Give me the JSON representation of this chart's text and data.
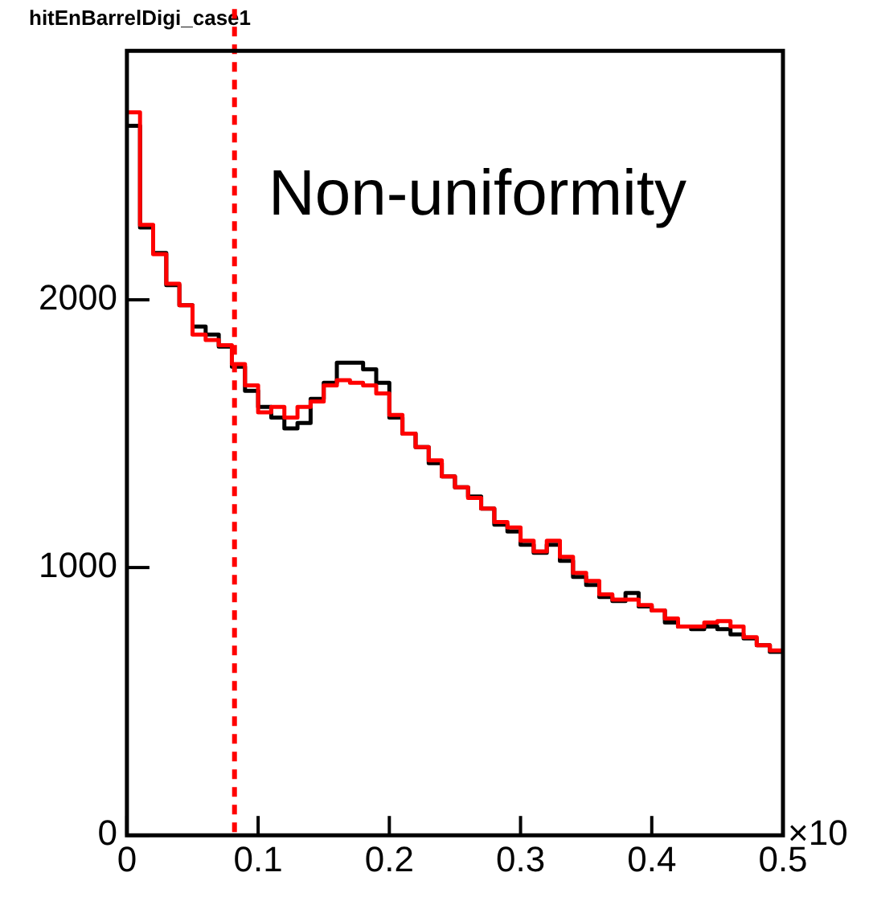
{
  "chart_data": {
    "type": "histogram",
    "title": "hitEnBarrelDigi_case1",
    "bins": [
      0,
      0.01,
      0.02,
      0.03,
      0.04,
      0.05,
      0.06,
      0.07,
      0.08,
      0.09,
      0.1,
      0.11,
      0.12,
      0.13,
      0.14,
      0.15,
      0.16,
      0.17,
      0.18,
      0.19,
      0.2,
      0.21,
      0.22,
      0.23,
      0.24,
      0.25,
      0.26,
      0.27,
      0.28,
      0.29,
      0.3,
      0.31,
      0.32,
      0.33,
      0.34,
      0.35,
      0.36,
      0.37,
      0.38,
      0.39,
      0.4,
      0.41,
      0.42,
      0.43,
      0.44,
      0.45,
      0.46,
      0.47,
      0.48,
      0.49,
      0.5
    ],
    "series": [
      {
        "color": "#ff0000",
        "values": [
          2700,
          2280,
          2170,
          2060,
          1980,
          1870,
          1850,
          1830,
          1760,
          1680,
          1580,
          1600,
          1560,
          1600,
          1620,
          1680,
          1700,
          1690,
          1680,
          1650,
          1570,
          1500,
          1450,
          1400,
          1340,
          1300,
          1260,
          1220,
          1170,
          1150,
          1100,
          1060,
          1100,
          1040,
          980,
          950,
          900,
          880,
          880,
          860,
          840,
          810,
          780,
          780,
          795,
          800,
          780,
          740,
          710,
          690
        ]
      },
      {
        "color": "#000000",
        "values": [
          2650,
          2270,
          2175,
          2055,
          1980,
          1900,
          1870,
          1825,
          1750,
          1660,
          1600,
          1560,
          1520,
          1540,
          1630,
          1690,
          1765,
          1765,
          1740,
          1690,
          1560,
          1500,
          1450,
          1390,
          1340,
          1300,
          1265,
          1220,
          1160,
          1135,
          1085,
          1055,
          1085,
          1025,
          965,
          935,
          890,
          875,
          905,
          855,
          840,
          795,
          780,
          770,
          780,
          770,
          750,
          735,
          710,
          685
        ]
      }
    ],
    "xlim": [
      0,
      0.5
    ],
    "xticks": [
      0,
      0.1,
      0.2,
      0.3,
      0.4,
      0.5
    ],
    "ylim": [
      0,
      2930
    ],
    "yticks": [
      0,
      1000,
      2000
    ],
    "grid": false,
    "legend": false,
    "ref_lines": [
      {
        "axis": "x",
        "value": 0.082,
        "color": "#ff0000",
        "line_style": "dashed"
      }
    ],
    "annotations": [
      "Non-uniformity",
      "×10"
    ]
  }
}
